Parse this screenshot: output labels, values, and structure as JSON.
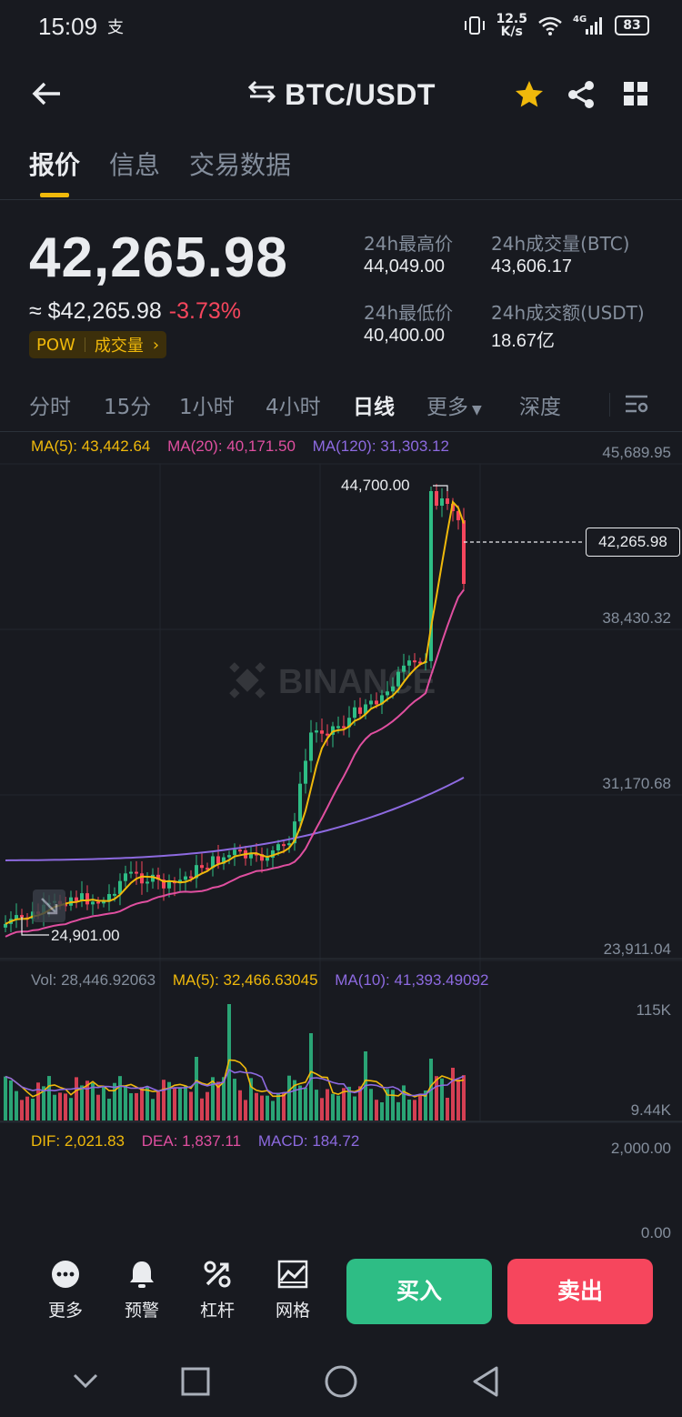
{
  "status_bar": {
    "time": "15:09",
    "network_speed_top": "12.5",
    "network_speed_bottom": "K/s",
    "signal_label": "4G",
    "battery": "83"
  },
  "header": {
    "pair": "BTC/USDT",
    "back_icon": "back-arrow-icon",
    "swap_icon": "swap-arrows-icon",
    "favorite_icon": "star-icon",
    "share_icon": "share-icon",
    "grid_icon": "grid-icon"
  },
  "tabs": [
    {
      "label": "报价",
      "active": true
    },
    {
      "label": "信息",
      "active": false
    },
    {
      "label": "交易数据",
      "active": false
    }
  ],
  "quote": {
    "last_price": "42,265.98",
    "approx_usd": "≈ $42,265.98",
    "change_pct": "-3.73%",
    "tag_pow": "POW",
    "tag_volume": "成交量",
    "tag_chevron": "›",
    "high_label": "24h最高价",
    "high_value": "44,049.00",
    "low_label": "24h最低价",
    "low_value": "40,400.00",
    "vol_btc_label": "24h成交量(BTC)",
    "vol_btc_value": "43,606.17",
    "vol_usdt_label": "24h成交额(USDT)",
    "vol_usdt_value": "18.67亿"
  },
  "intervals": [
    "分时",
    "15分",
    "1小时",
    "4小时",
    "日线",
    "更多",
    "深度"
  ],
  "selected_interval": "日线",
  "watermark": "BINANCE",
  "main_chart": {
    "ma5_label": "MA(5): 43,442.64",
    "ma20_label": "MA(20): 40,171.50",
    "ma120_label": "MA(120): 31,303.12",
    "y_ticks": [
      "45,689.95",
      "38,430.32",
      "31,170.68",
      "23,911.04"
    ],
    "current_price_tag": "42,265.98",
    "max_marker": "44,700.00",
    "min_marker": "24,901.00"
  },
  "volume_chart": {
    "vol_label": "Vol: 28,446.92063",
    "ma5_label": "MA(5): 32,466.63045",
    "ma10_label": "MA(10): 41,393.49092",
    "y_ticks": [
      "115K",
      "9.44K"
    ]
  },
  "macd_chart": {
    "dif_label": "DIF: 2,021.83",
    "dea_label": "DEA: 1,837.11",
    "macd_label": "MACD: 184.72",
    "y_ticks": [
      "2,000.00",
      "0.00"
    ]
  },
  "toolbar": {
    "more": "更多",
    "alert": "预警",
    "leverage": "杠杆",
    "grid": "网格",
    "buy": "买入",
    "sell": "卖出"
  },
  "colors": {
    "up": "#2ebd85",
    "down": "#f6465d",
    "accent": "#f0b90b",
    "ma5": "#f0b90b",
    "ma20": "#e04fa0",
    "ma120": "#8d6ae0"
  }
}
